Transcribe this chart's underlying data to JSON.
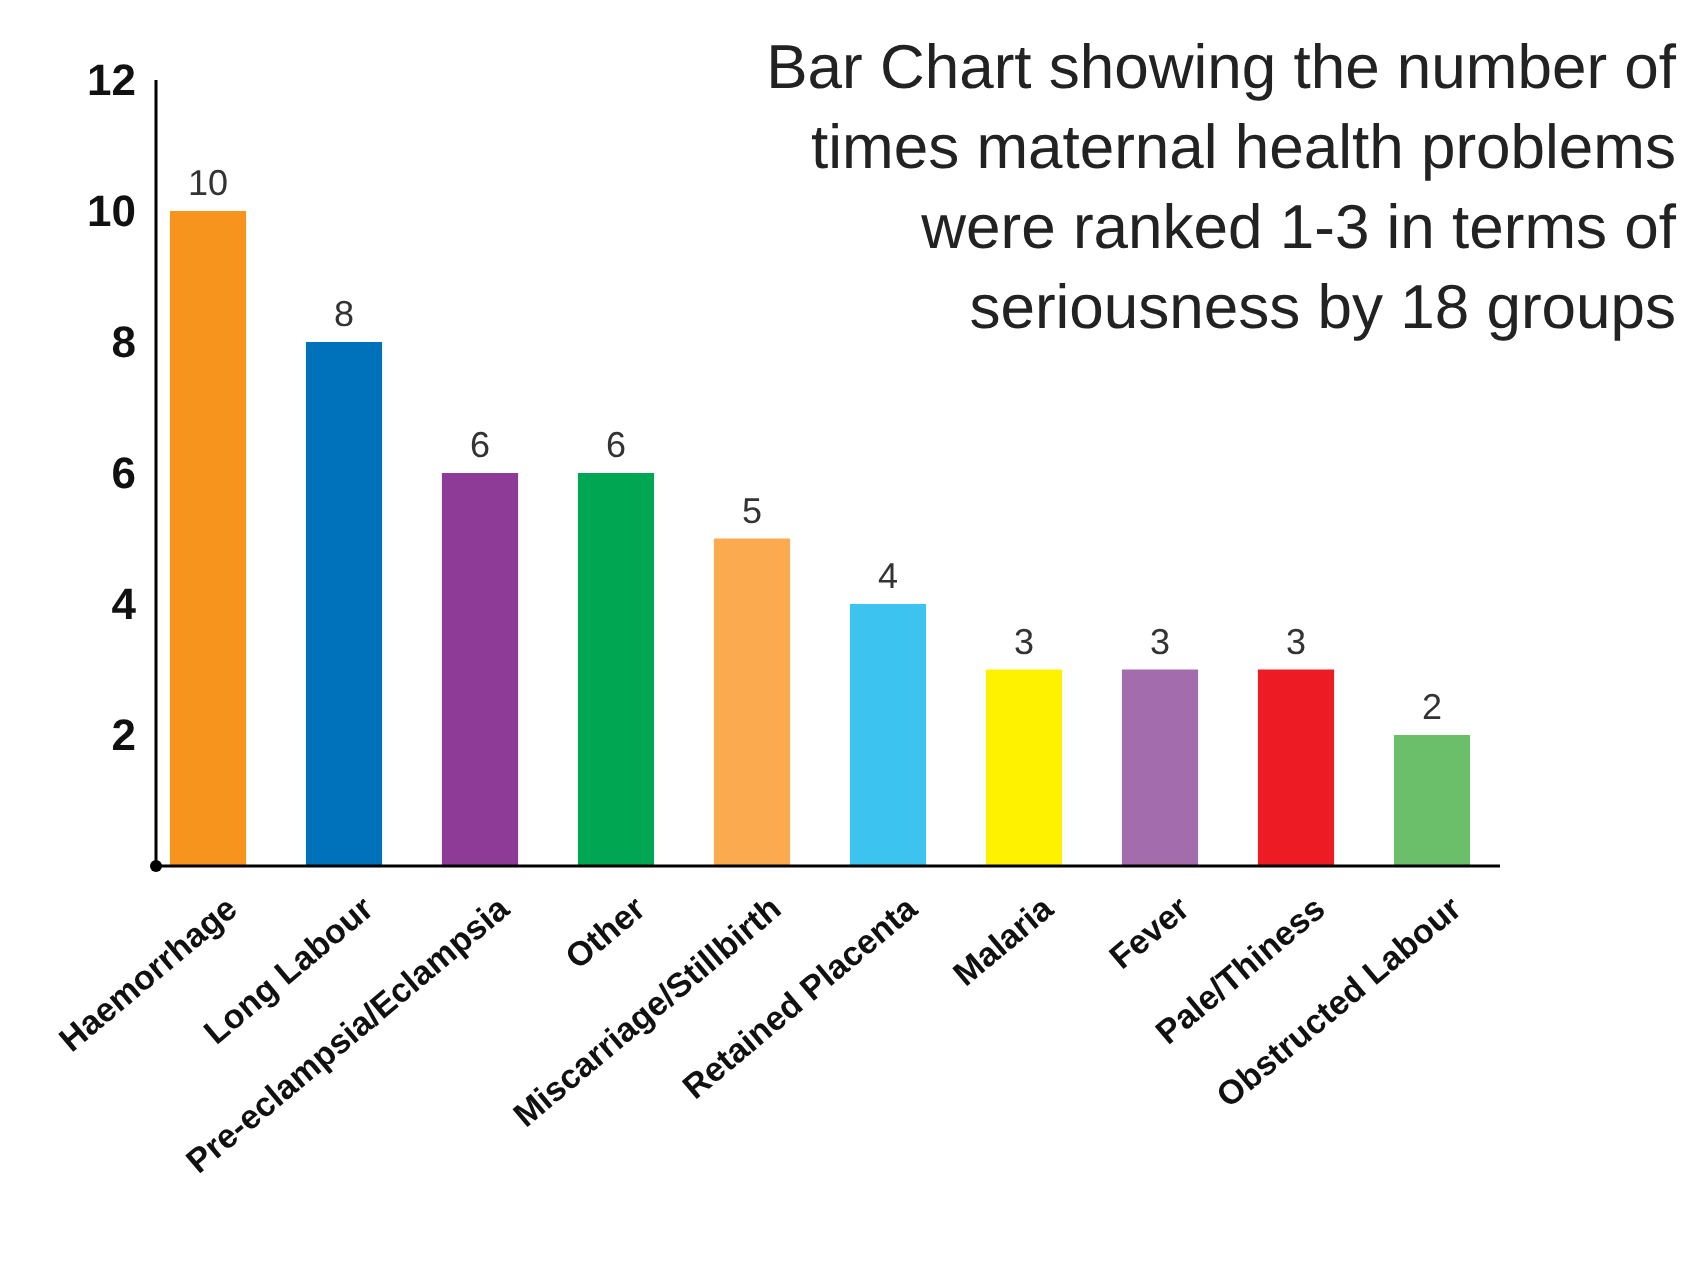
{
  "chart_data": {
    "type": "bar",
    "title": "Bar Chart showing the number of times maternal health problems were ranked 1-3 in terms of seriousness by 18 groups",
    "categories": [
      "Haemorrhage",
      "Long Labour",
      "Pre-eclampsia/Eclampsia",
      "Other",
      "Miscarriage/Stillbirth",
      "Retained Placenta",
      "Malaria",
      "Fever",
      "Pale/Thiness",
      "Obstructed Labour"
    ],
    "values": [
      10,
      8,
      6,
      6,
      5,
      4,
      3,
      3,
      3,
      2
    ],
    "colors": [
      "#f7941d",
      "#0072bc",
      "#8e3b97",
      "#00a651",
      "#fbaa4f",
      "#3cc3f0",
      "#fff200",
      "#a26cad",
      "#ed1c24",
      "#6cbf6a"
    ],
    "ylim": [
      0,
      12
    ],
    "yticks": [
      2,
      4,
      6,
      8,
      10,
      12
    ],
    "data_labels": true,
    "grid": false
  }
}
